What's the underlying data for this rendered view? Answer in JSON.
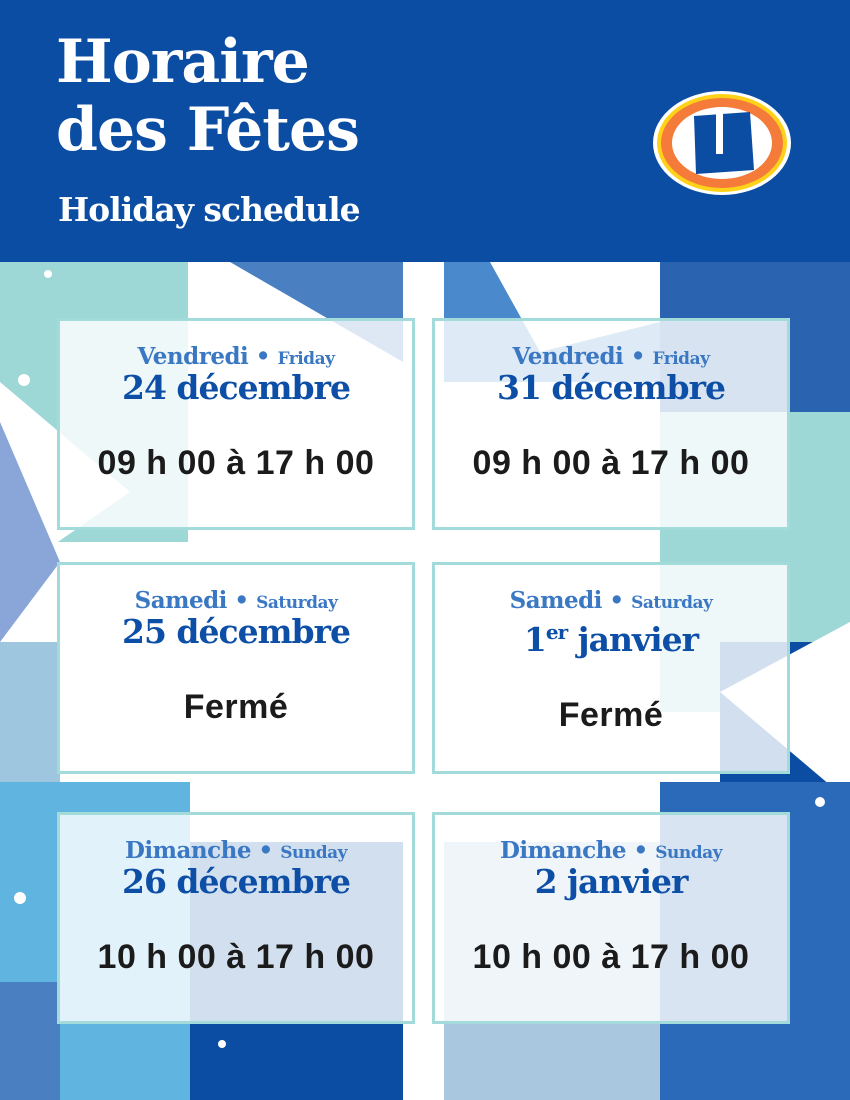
{
  "header": {
    "title_line1": "Horaire",
    "title_line2": "des Fêtes",
    "subtitle": "Holiday schedule",
    "logo_text": "U"
  },
  "colors": {
    "brand_blue": "#0a4da2",
    "orange": "#f47b3a",
    "yellow": "#ffd21a",
    "teal": "#a3dada"
  },
  "days": [
    {
      "day_fr": "Vendredi",
      "day_en": "Friday",
      "date": "24 décembre",
      "date_sup": "",
      "hours": "09 h 00 à 17 h 00"
    },
    {
      "day_fr": "Vendredi",
      "day_en": "Friday",
      "date": "31 décembre",
      "date_sup": "",
      "hours": "09 h 00 à 17 h 00"
    },
    {
      "day_fr": "Samedi",
      "day_en": "Saturday",
      "date": "25 décembre",
      "date_sup": "",
      "hours": "Fermé"
    },
    {
      "day_fr": "Samedi",
      "day_en": "Saturday",
      "date_num": "1",
      "date_sup": "er",
      "date": " janvier",
      "hours": "Fermé"
    },
    {
      "day_fr": "Dimanche",
      "day_en": "Sunday",
      "date": "26 décembre",
      "date_sup": "",
      "hours": "10 h 00 à 17 h 00"
    },
    {
      "day_fr": "Dimanche",
      "day_en": "Sunday",
      "date": "2 janvier",
      "date_sup": "",
      "hours": "10 h 00 à 17 h 00"
    }
  ]
}
